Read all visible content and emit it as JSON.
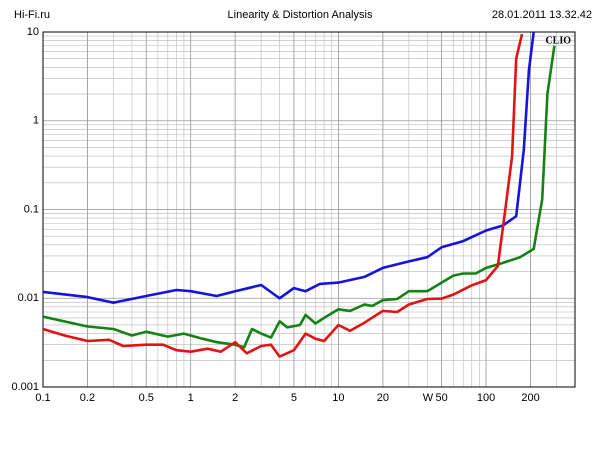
{
  "chart_data": {
    "type": "line",
    "site": "Hi-Fi.ru",
    "title": "Linearity & Distortion Analysis",
    "timestamp": "28.01.2011 13.32.42",
    "annotation": "CLIO",
    "x_label": "W",
    "xscale": "log",
    "yscale": "log",
    "grid": true,
    "xlim": [
      0.1,
      400
    ],
    "ylim": [
      0.001,
      10
    ],
    "xticks": [
      0.1,
      0.2,
      0.5,
      1,
      2,
      5,
      10,
      20,
      50,
      100,
      200
    ],
    "yticks": [
      0.001,
      0.01,
      0.1,
      1,
      10
    ],
    "series": [
      {
        "color": "#1414dc",
        "x": [
          0.1,
          0.2,
          0.3,
          0.5,
          0.8,
          1,
          1.5,
          2,
          3,
          4,
          5,
          6,
          7.5,
          10,
          15,
          20,
          30,
          40,
          50,
          70,
          100,
          130,
          160,
          180,
          195,
          210
        ],
        "values": [
          0.0118,
          0.0103,
          0.0089,
          0.0106,
          0.0124,
          0.012,
          0.0106,
          0.012,
          0.0141,
          0.01,
          0.013,
          0.012,
          0.0145,
          0.015,
          0.0174,
          0.022,
          0.026,
          0.029,
          0.0375,
          0.044,
          0.058,
          0.066,
          0.084,
          0.47,
          3.7,
          10
        ]
      },
      {
        "color": "#148214",
        "x": [
          0.1,
          0.2,
          0.3,
          0.4,
          0.5,
          0.7,
          0.9,
          1.2,
          1.5,
          2,
          2.3,
          2.6,
          3,
          3.5,
          4,
          4.5,
          5.5,
          6,
          7,
          8,
          10,
          12,
          15,
          17,
          20,
          25,
          30,
          40,
          50,
          60,
          70,
          85,
          100,
          130,
          170,
          210,
          240,
          260,
          290
        ],
        "values": [
          0.0062,
          0.0048,
          0.0045,
          0.0038,
          0.0042,
          0.0037,
          0.004,
          0.0035,
          0.0032,
          0.003,
          0.0028,
          0.0045,
          0.004,
          0.0036,
          0.0055,
          0.0047,
          0.005,
          0.0065,
          0.0052,
          0.006,
          0.0075,
          0.0072,
          0.0085,
          0.0082,
          0.0095,
          0.0098,
          0.012,
          0.012,
          0.015,
          0.018,
          0.019,
          0.019,
          0.022,
          0.025,
          0.029,
          0.036,
          0.13,
          2,
          7
        ]
      },
      {
        "color": "#e01414",
        "x": [
          0.1,
          0.14,
          0.2,
          0.28,
          0.35,
          0.5,
          0.65,
          0.8,
          1,
          1.3,
          1.6,
          2,
          2.4,
          3,
          3.5,
          4,
          5,
          6,
          7,
          8,
          10,
          12,
          15,
          20,
          25,
          30,
          40,
          50,
          60,
          80,
          100,
          120,
          135,
          150,
          160,
          175
        ],
        "values": [
          0.0045,
          0.0038,
          0.0033,
          0.0034,
          0.0029,
          0.003,
          0.003,
          0.0026,
          0.0025,
          0.0027,
          0.0025,
          0.0032,
          0.0024,
          0.0029,
          0.003,
          0.0022,
          0.0026,
          0.004,
          0.0035,
          0.0033,
          0.005,
          0.0043,
          0.0053,
          0.0072,
          0.007,
          0.0085,
          0.0098,
          0.0099,
          0.011,
          0.014,
          0.016,
          0.023,
          0.1,
          0.4,
          5,
          9.5
        ]
      }
    ]
  }
}
